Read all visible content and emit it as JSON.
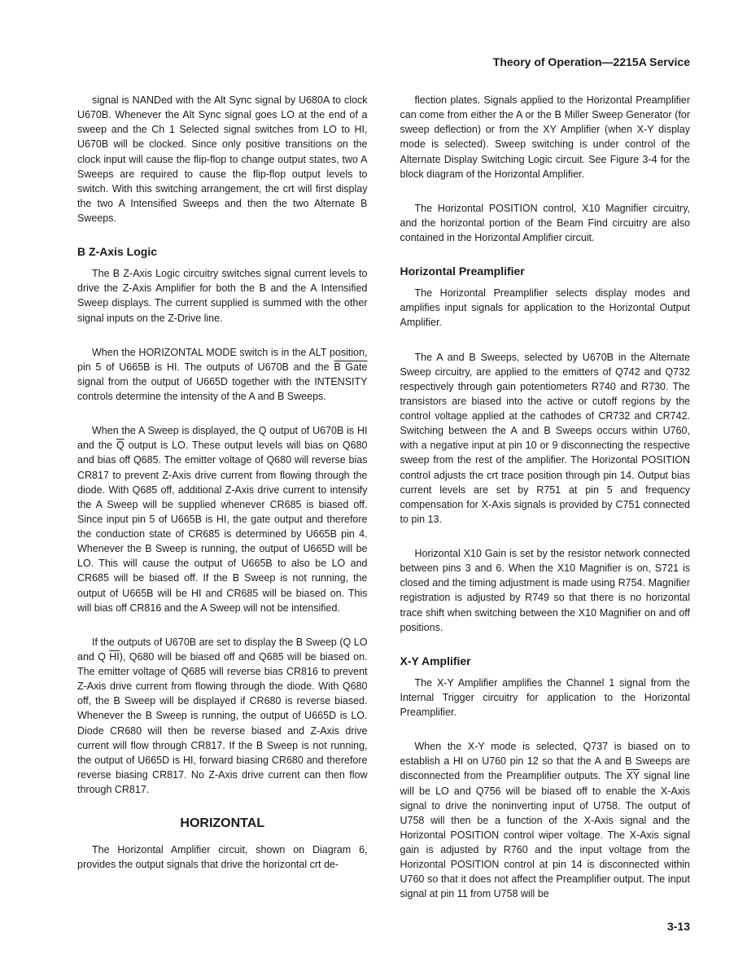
{
  "header": "Theory of Operation—2215A Service",
  "page_number": "3-13",
  "left_column": {
    "p1": "signal is NANDed with the Alt Sync signal by U680A to clock U670B. Whenever the Alt Sync signal goes LO at the end of a sweep and the Ch 1 Selected signal switches from LO to HI, U670B will be clocked. Since only positive transitions on the clock input will cause the flip-flop to change output states, two A Sweeps are required to cause the flip-flop output levels to switch. With this switching arrangement, the crt will first display the two A Intensified Sweeps and then the two Alternate B Sweeps.",
    "h1": "B Z-Axis Logic",
    "p2": "The B Z-Axis Logic circuitry switches signal current levels to drive the Z-Axis Amplifier for both the B and the A Intensified Sweep displays. The current supplied is summed with the other signal inputs on the Z-Drive line.",
    "p3_a": "When the HORIZONTAL MODE switch is in the ALT position, pin 5 of U665B is HI. The outputs of U670B and the ",
    "p3_b": "B Gate",
    "p3_c": " signal from the output of U665D together with the INTENSITY controls determine the intensity of the A and B Sweeps.",
    "p4_a": "When the A Sweep is displayed, the Q output of U670B is HI and the ",
    "p4_b": "Q",
    "p4_c": " output is LO. These output levels will bias on Q680 and bias off Q685. The emitter voltage of Q680 will reverse bias CR817 to prevent Z-Axis drive current from flowing through the diode. With Q685 off, additional Z-Axis drive current to intensify the A Sweep will be supplied whenever CR685 is biased off. Since input pin 5 of U665B is HI, the gate output and therefore the conduction state of CR685 is determined by U665B pin 4. Whenever the B Sweep is running, the output of U665D will be LO. This will cause the output of U665B to also be LO and CR685 will be biased off. If the B Sweep is not running, the output of U665B will be HI and CR685 will be biased on. This will bias off CR816 and the A Sweep will not be intensified.",
    "p5_a": "If the outputs of U670B are set to display the B Sweep (Q LO and Q ",
    "p5_b": "HI",
    "p5_c": "), Q680 will be biased off and Q685 will be biased on. The emitter voltage of Q685 will reverse bias CR816 to prevent Z-Axis drive current from flowing through the diode. With Q680 off, the B Sweep will be displayed if CR680 is reverse biased. Whenever the B Sweep is running, the output of U665D is LO. Diode CR680 will then be reverse biased and Z-Axis drive current will flow through CR817. If the B Sweep is not running, the output of U665D is HI, forward biasing CR680 and therefore reverse biasing CR817. No Z-Axis drive current can then flow through CR817.",
    "h2": "HORIZONTAL",
    "p6": "The Horizontal Amplifier circuit, shown on Diagram 6, provides the output signals that drive the horizontal crt de-"
  },
  "right_column": {
    "p1": "flection plates. Signals applied to the Horizontal Preamplifier can come from either the A or the B Miller Sweep Generator (for sweep deflection) or from the XY Amplifier (when X-Y display mode is selected). Sweep switching is under control of the Alternate Display Switching Logic circuit. See Figure 3-4 for the block diagram of the Horizontal Amplifier.",
    "p2": "The Horizontal POSITION control, X10 Magnifier circuitry, and the horizontal portion of the Beam Find circuitry are also contained in the Horizontal Amplifier circuit.",
    "h1": "Horizontal Preamplifier",
    "p3": "The Horizontal Preamplifier selects display modes and amplifies input signals for application to the Horizontal Output Amplifier.",
    "p4": "The A and B Sweeps, selected by U670B in the Alternate Sweep circuitry, are applied to the emitters of Q742 and Q732 respectively through gain potentiometers R740 and R730. The transistors are biased into the active or cutoff regions by the control voltage applied at the cathodes of CR732 and CR742. Switching between the A and B Sweeps occurs within U760, with a negative input at pin 10 or 9 disconnecting the respective sweep from the rest of the amplifier. The Horizontal POSITION control adjusts the crt trace position through pin 14. Output bias current levels are set by R751 at pin 5 and frequency compensation for X-Axis signals is provided by C751 connected to pin 13.",
    "p5": "Horizontal X10 Gain is set by the resistor network connected between pins 3 and 6. When the X10 Magnifier is on, S721 is closed and the timing adjustment is made using R754. Magnifier registration is adjusted by R749 so that there is no horizontal trace shift when switching between the X10 Magnifier on and off positions.",
    "h2": "X-Y Amplifier",
    "p6": "The X-Y Amplifier amplifies the Channel 1 signal from the Internal Trigger circuitry for application to the Horizontal Preamplifier.",
    "p7_a": "When the X-Y mode is selected, Q737 is biased on to establish a HI on U760 pin 12 so that the A and B Sweeps are disconnected from the Preamplifier outputs. The ",
    "p7_b": "XY",
    "p7_c": " signal line will be LO and Q756 will be biased off to enable the X-Axis signal to drive the noninverting input of U758. The output of U758 will then be a function of the X-Axis signal and the Horizontal POSITION control wiper voltage. The X-Axis signal gain is adjusted by R760 and the input voltage from the Horizontal POSITION control at pin 14 is disconnected within U760 so that it does not affect the Preamplifier output. The input signal at pin 11 from U758 will be"
  }
}
